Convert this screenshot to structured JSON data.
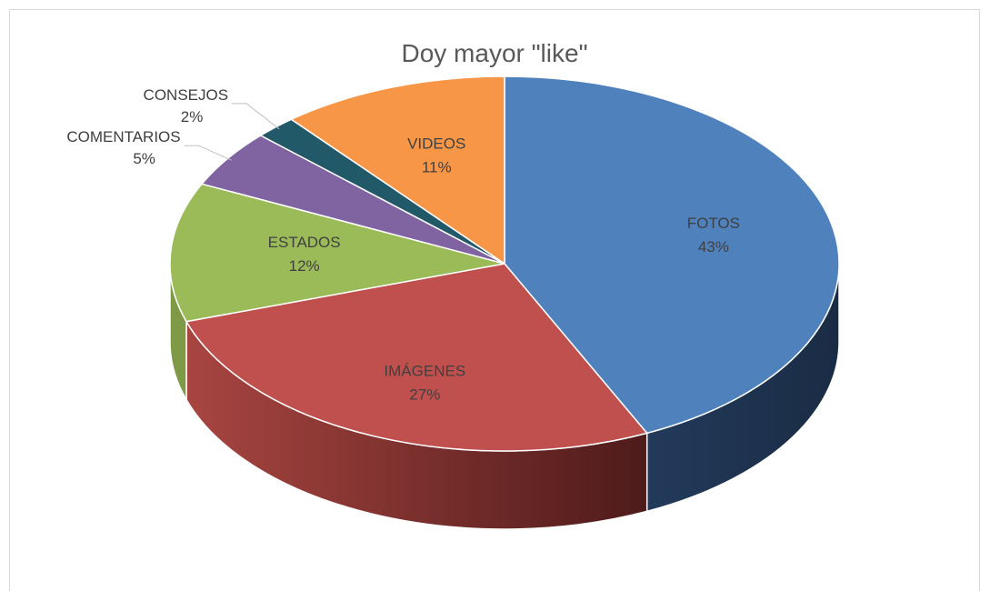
{
  "chart_data": {
    "type": "pie",
    "title": "Doy mayor \"like\"",
    "legend": "none",
    "style": "3d",
    "slices": [
      {
        "name": "FOTOS",
        "value": 43,
        "label": "43%",
        "color": "#4f81bd",
        "side_color": "#1f3350"
      },
      {
        "name": "IMÁGENES",
        "value": 27,
        "label": "27%",
        "color": "#c0504d",
        "side_color": "#7a2a28"
      },
      {
        "name": "ESTADOS",
        "value": 12,
        "label": "12%",
        "color": "#9bbb59",
        "side_color": "#5e7433"
      },
      {
        "name": "COMENTARIOS",
        "value": 5,
        "label": "5%",
        "color": "#8064a2",
        "side_color": "#4b3a61"
      },
      {
        "name": "CONSEJOS",
        "value": 2,
        "label": "2%",
        "color": "#215968",
        "side_color": "#12323b"
      },
      {
        "name": "VIDEOS",
        "value": 11,
        "label": "11%",
        "color": "#f79646",
        "side_color": "#9a5a22"
      }
    ]
  }
}
